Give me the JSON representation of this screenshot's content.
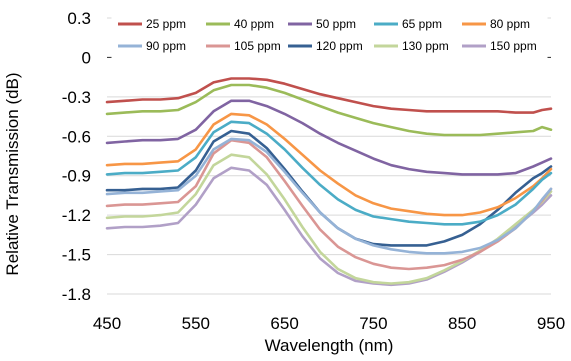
{
  "chart_data": {
    "type": "line",
    "xlabel": "Wavelength (nm)",
    "ylabel": "Relative Transmission (dB)",
    "xlim": [
      450,
      950
    ],
    "ylim": [
      -1.8,
      0.3
    ],
    "x_ticks": [
      450,
      550,
      650,
      750,
      850,
      950
    ],
    "x_tick_labels": [
      "450",
      "550",
      "650",
      "750",
      "850",
      "950"
    ],
    "y_ticks": [
      0.3,
      0,
      -0.3,
      -0.6,
      -0.9,
      -1.2,
      -1.5,
      -1.8
    ],
    "y_tick_labels": [
      "0.3",
      "0",
      "-0.3",
      "-0.6",
      "-0.9",
      "-1.2",
      "-1.5",
      "-1.8"
    ],
    "grid": "horizontal",
    "legend": "top",
    "x": [
      450,
      470,
      490,
      510,
      530,
      550,
      570,
      590,
      610,
      630,
      650,
      670,
      690,
      710,
      730,
      750,
      770,
      790,
      810,
      830,
      850,
      870,
      890,
      910,
      930,
      940,
      950
    ],
    "series": [
      {
        "name": "25 ppm",
        "color": "#c0504d",
        "values": [
          -0.34,
          -0.33,
          -0.32,
          -0.32,
          -0.31,
          -0.27,
          -0.19,
          -0.16,
          -0.16,
          -0.17,
          -0.2,
          -0.24,
          -0.28,
          -0.31,
          -0.34,
          -0.37,
          -0.39,
          -0.4,
          -0.41,
          -0.41,
          -0.41,
          -0.41,
          -0.41,
          -0.42,
          -0.42,
          -0.4,
          -0.39
        ]
      },
      {
        "name": "40 ppm",
        "color": "#9bbb59",
        "values": [
          -0.43,
          -0.42,
          -0.41,
          -0.41,
          -0.4,
          -0.34,
          -0.25,
          -0.21,
          -0.21,
          -0.23,
          -0.27,
          -0.32,
          -0.37,
          -0.42,
          -0.46,
          -0.5,
          -0.53,
          -0.56,
          -0.58,
          -0.59,
          -0.59,
          -0.59,
          -0.58,
          -0.57,
          -0.56,
          -0.53,
          -0.55
        ]
      },
      {
        "name": "50 ppm",
        "color": "#8064a2",
        "values": [
          -0.65,
          -0.64,
          -0.63,
          -0.63,
          -0.62,
          -0.55,
          -0.41,
          -0.33,
          -0.33,
          -0.37,
          -0.43,
          -0.5,
          -0.58,
          -0.65,
          -0.71,
          -0.77,
          -0.82,
          -0.85,
          -0.87,
          -0.88,
          -0.89,
          -0.89,
          -0.89,
          -0.88,
          -0.83,
          -0.8,
          -0.77
        ]
      },
      {
        "name": "65 ppm",
        "color": "#4bacc6",
        "values": [
          -0.89,
          -0.88,
          -0.88,
          -0.87,
          -0.86,
          -0.76,
          -0.57,
          -0.49,
          -0.5,
          -0.58,
          -0.7,
          -0.84,
          -0.97,
          -1.08,
          -1.16,
          -1.21,
          -1.23,
          -1.25,
          -1.26,
          -1.27,
          -1.27,
          -1.25,
          -1.2,
          -1.12,
          -1.0,
          -0.93,
          -0.88
        ]
      },
      {
        "name": "80 ppm",
        "color": "#f79646",
        "values": [
          -0.82,
          -0.81,
          -0.81,
          -0.8,
          -0.79,
          -0.7,
          -0.51,
          -0.43,
          -0.44,
          -0.51,
          -0.62,
          -0.74,
          -0.86,
          -0.96,
          -1.05,
          -1.11,
          -1.15,
          -1.17,
          -1.19,
          -1.2,
          -1.2,
          -1.18,
          -1.14,
          -1.07,
          -0.98,
          -0.92,
          -0.85
        ]
      },
      {
        "name": "90 ppm",
        "color": "#95b3d7",
        "values": [
          -1.04,
          -1.03,
          -1.03,
          -1.02,
          -1.01,
          -0.9,
          -0.7,
          -0.62,
          -0.63,
          -0.72,
          -0.87,
          -1.03,
          -1.18,
          -1.3,
          -1.38,
          -1.43,
          -1.46,
          -1.48,
          -1.49,
          -1.49,
          -1.48,
          -1.45,
          -1.39,
          -1.3,
          -1.17,
          -1.08,
          -1.0
        ]
      },
      {
        "name": "105 ppm",
        "color": "#da9694",
        "values": [
          -1.13,
          -1.12,
          -1.12,
          -1.11,
          -1.1,
          -0.98,
          -0.73,
          -0.63,
          -0.65,
          -0.76,
          -0.94,
          -1.13,
          -1.31,
          -1.44,
          -1.52,
          -1.57,
          -1.6,
          -1.61,
          -1.6,
          -1.58,
          -1.54,
          -1.48,
          -1.4,
          -1.3,
          -1.17,
          -1.09,
          -1.0
        ]
      },
      {
        "name": "120 ppm",
        "color": "#366092",
        "values": [
          -1.01,
          -1.01,
          -1.0,
          -1.0,
          -0.99,
          -0.86,
          -0.64,
          -0.56,
          -0.58,
          -0.69,
          -0.85,
          -1.02,
          -1.18,
          -1.3,
          -1.38,
          -1.42,
          -1.43,
          -1.43,
          -1.43,
          -1.4,
          -1.35,
          -1.27,
          -1.16,
          -1.03,
          -0.92,
          -0.88,
          -0.83
        ]
      },
      {
        "name": "130 ppm",
        "color": "#c3d69b",
        "values": [
          -1.22,
          -1.21,
          -1.21,
          -1.2,
          -1.18,
          -1.04,
          -0.82,
          -0.74,
          -0.76,
          -0.89,
          -1.08,
          -1.29,
          -1.48,
          -1.61,
          -1.68,
          -1.71,
          -1.72,
          -1.71,
          -1.68,
          -1.62,
          -1.55,
          -1.47,
          -1.38,
          -1.27,
          -1.16,
          -1.1,
          -1.02
        ]
      },
      {
        "name": "150 ppm",
        "color": "#b1a0c7",
        "values": [
          -1.3,
          -1.29,
          -1.29,
          -1.28,
          -1.26,
          -1.12,
          -0.92,
          -0.84,
          -0.86,
          -0.97,
          -1.16,
          -1.36,
          -1.53,
          -1.64,
          -1.7,
          -1.72,
          -1.73,
          -1.72,
          -1.69,
          -1.63,
          -1.56,
          -1.48,
          -1.39,
          -1.29,
          -1.18,
          -1.12,
          -1.05
        ]
      }
    ]
  }
}
